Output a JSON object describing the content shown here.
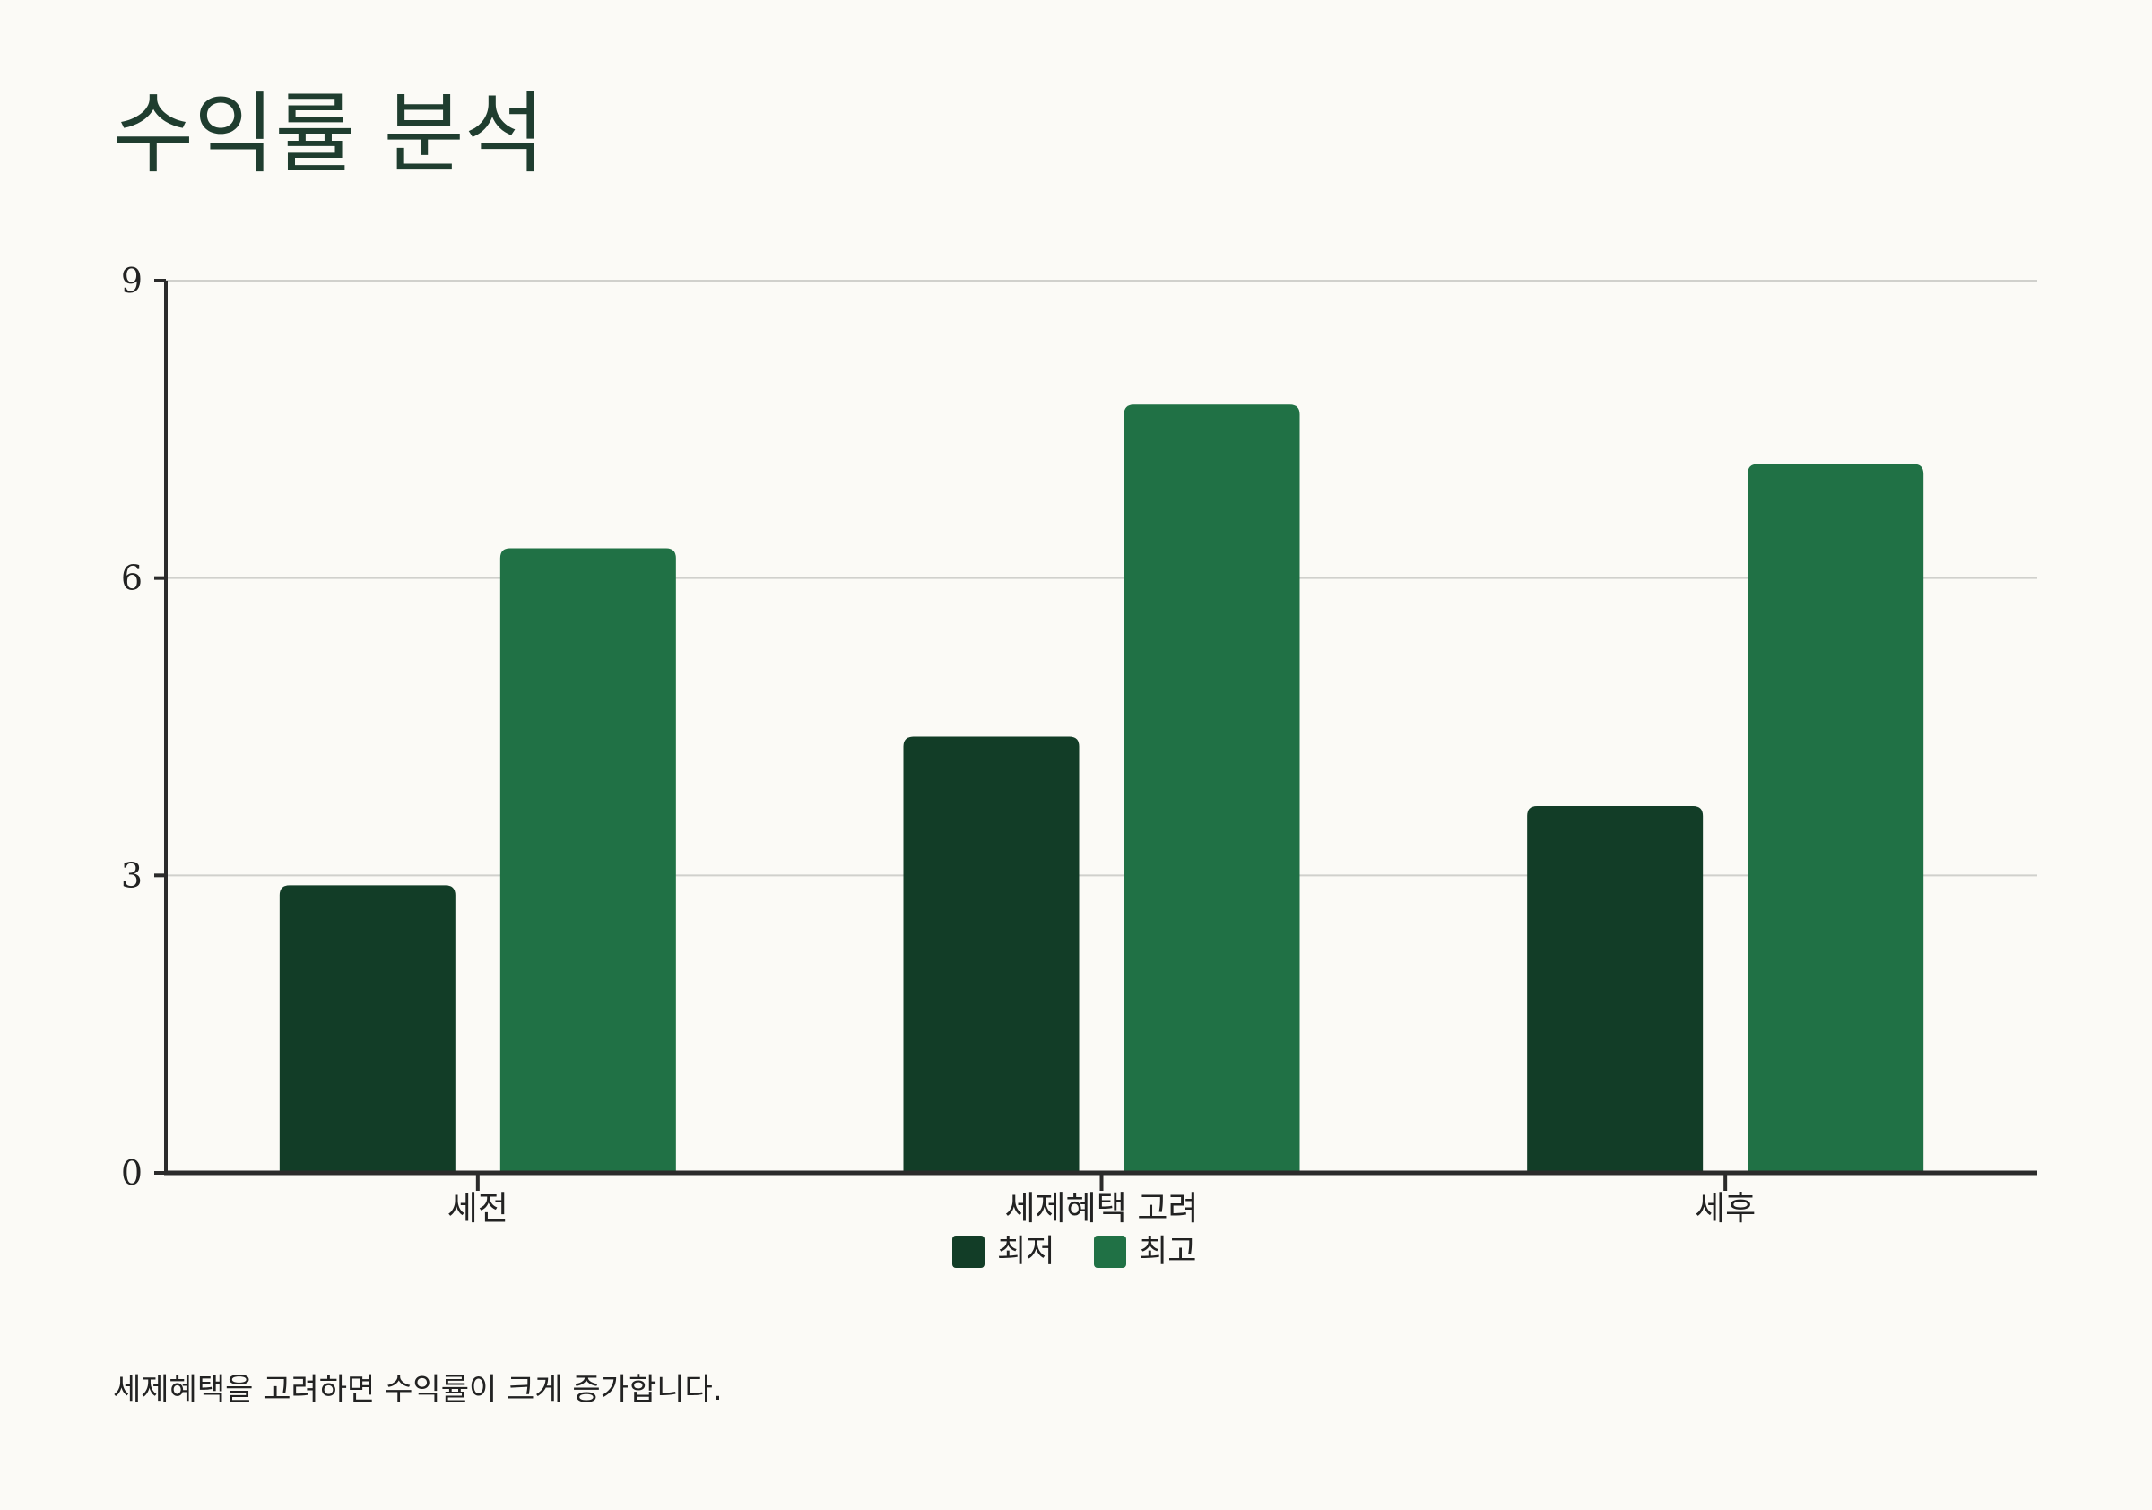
{
  "title": "수익률 분석",
  "caption": "세제혜택을 고려하면 수익률이 크게 증가합니다.",
  "colors": {
    "background": "#fbfaf6",
    "title": "#1f3d2f",
    "grid": "#d0d0cc",
    "axis": "#2b2b2b"
  },
  "chart_data": {
    "type": "bar",
    "categories": [
      "세전",
      "세제혜택 고려",
      "세후"
    ],
    "series": [
      {
        "name": "최저",
        "color": "#123d27",
        "values": [
          2.9,
          4.4,
          3.7
        ]
      },
      {
        "name": "최고",
        "color": "#207145",
        "values": [
          6.3,
          7.75,
          7.15
        ]
      }
    ],
    "ylim": [
      0,
      9
    ],
    "yticks": [
      0,
      3,
      6,
      9
    ],
    "grid": true,
    "legend": "bottom-center"
  }
}
